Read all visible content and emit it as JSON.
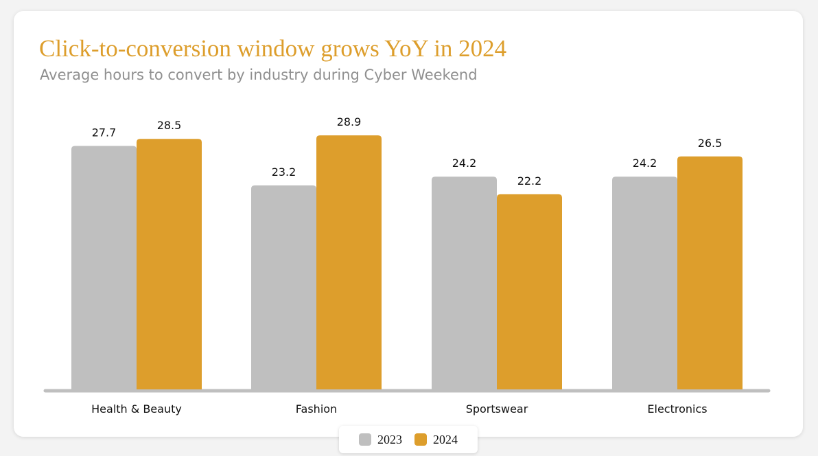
{
  "header": {
    "title": "Click-to-conversion window grows YoY in 2024",
    "subtitle": "Average hours to convert by industry during Cyber Weekend"
  },
  "colors": {
    "series_2023": "#bfbfbf",
    "series_2024": "#dd9e2c",
    "axis": "#bfbfbf"
  },
  "chart_data": {
    "type": "bar",
    "title": "Click-to-conversion window grows YoY in 2024",
    "subtitle": "Average hours to convert by industry during Cyber Weekend",
    "xlabel": "",
    "ylabel": "",
    "categories": [
      "Health & Beauty",
      "Fashion",
      "Sportswear",
      "Electronics"
    ],
    "series": [
      {
        "name": "2023",
        "values": [
          27.7,
          23.2,
          24.2,
          24.2
        ]
      },
      {
        "name": "2024",
        "values": [
          28.5,
          28.9,
          22.2,
          26.5
        ]
      }
    ],
    "ylim": [
      0,
      30
    ],
    "grid": false,
    "legend_position": "bottom-center"
  },
  "legend": {
    "items": [
      {
        "label": "2023"
      },
      {
        "label": "2024"
      }
    ]
  }
}
